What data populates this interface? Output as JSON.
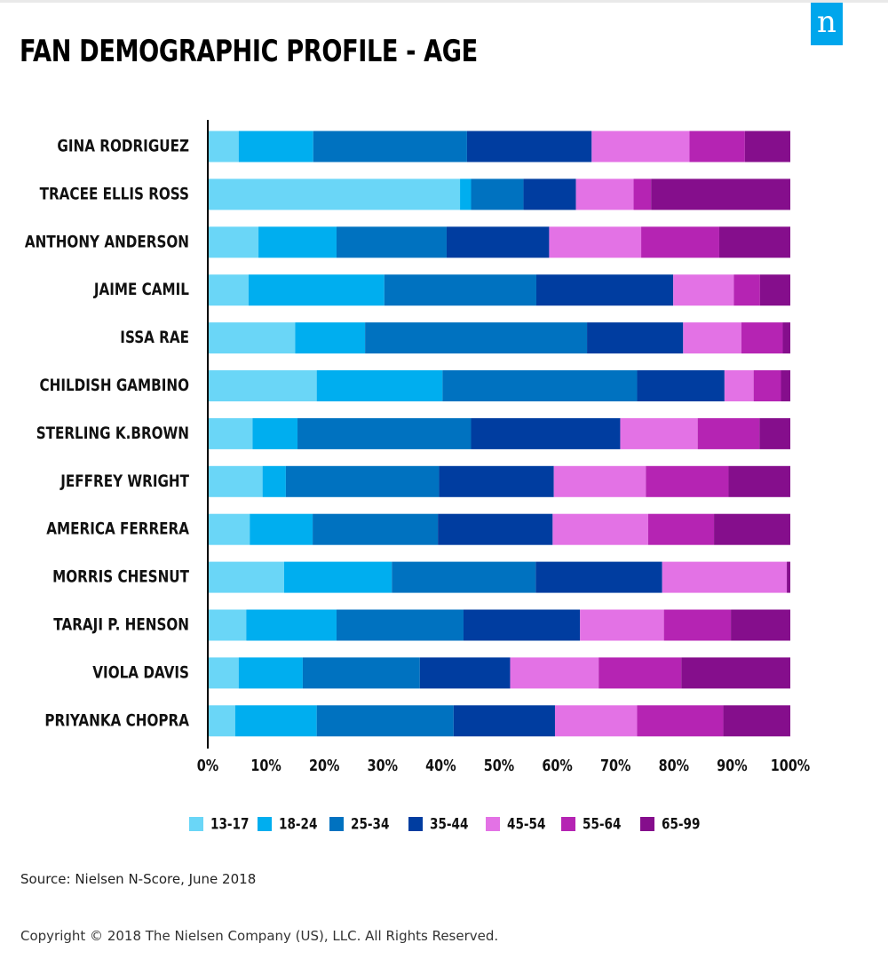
{
  "header": {
    "title": "FAN DEMOGRAPHIC PROFILE - AGE",
    "logo_letter": "n"
  },
  "footer": {
    "source": "Source: Nielsen N-Score, June 2018",
    "copyright": "Copyright © 2018 The Nielsen Company (US), LLC. All Rights Reserved."
  },
  "chart_data": {
    "type": "bar",
    "orientation": "horizontal",
    "stacked": true,
    "title": "FAN DEMOGRAPHIC PROFILE - AGE",
    "xlabel": "",
    "ylabel": "",
    "xlim": [
      0,
      100
    ],
    "x_ticks": [
      "0%",
      "10%",
      "20%",
      "30%",
      "40%",
      "50%",
      "60%",
      "70%",
      "80%",
      "90%",
      "100%"
    ],
    "grid": false,
    "legend_position": "bottom",
    "categories": [
      "GINA RODRIGUEZ",
      "TRACEE ELLIS ROSS",
      "ANTHONY ANDERSON",
      "JAIME CAMIL",
      "ISSA RAE",
      "CHILDISH GAMBINO",
      "STERLING K.BROWN",
      "JEFFREY WRIGHT",
      "AMERICA FERRERA",
      "MORRIS CHESNUT",
      "TARAJI P. HENSON",
      "VIOLA DAVIS",
      "PRIYANKA CHOPRA"
    ],
    "series": [
      {
        "name": "13-17",
        "color": "#6ad6f7",
        "values": [
          5.3,
          43.3,
          8.7,
          7.0,
          15.0,
          18.7,
          7.7,
          9.4,
          7.2,
          13.1,
          6.6,
          5.3,
          4.7
        ]
      },
      {
        "name": "18-24",
        "color": "#00aeef",
        "values": [
          12.8,
          1.9,
          13.4,
          23.3,
          12.0,
          21.6,
          7.7,
          4.0,
          10.8,
          18.5,
          15.5,
          11.0,
          14.0
        ]
      },
      {
        "name": "25-34",
        "color": "#0072c0",
        "values": [
          26.4,
          9.0,
          18.9,
          26.1,
          38.1,
          33.4,
          29.8,
          26.3,
          21.5,
          24.7,
          21.8,
          20.1,
          23.5
        ]
      },
      {
        "name": "35-44",
        "color": "#003da0",
        "values": [
          21.4,
          9.0,
          17.6,
          23.5,
          16.5,
          15.0,
          25.6,
          19.7,
          19.7,
          21.7,
          20.0,
          15.5,
          17.4
        ]
      },
      {
        "name": "45-54",
        "color": "#e372e5",
        "values": [
          16.8,
          9.9,
          15.8,
          10.4,
          10.0,
          5.0,
          13.3,
          15.8,
          16.4,
          21.4,
          14.4,
          15.2,
          14.1
        ]
      },
      {
        "name": "55-64",
        "color": "#b524b3",
        "values": [
          9.5,
          3.0,
          13.4,
          4.5,
          7.1,
          4.7,
          10.6,
          14.2,
          11.3,
          0.0,
          11.5,
          14.2,
          14.8
        ]
      },
      {
        "name": "65-99",
        "color": "#850e8c",
        "values": [
          7.8,
          23.9,
          12.2,
          5.2,
          1.3,
          1.6,
          5.3,
          10.6,
          13.1,
          0.6,
          10.2,
          18.7,
          11.5
        ]
      }
    ]
  }
}
